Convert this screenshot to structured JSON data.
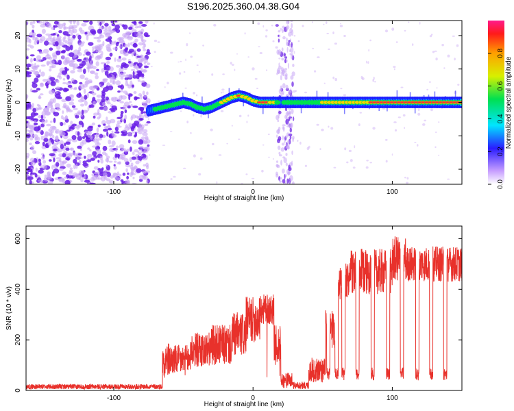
{
  "title": "S196.2025.360.04.38.G04",
  "colors": {
    "snr_line": "#e8312b",
    "ridge_core": "#ff3030",
    "ridge_mid": "#00e050",
    "ridge_edge": "#1e1eff",
    "noise_dark": "#6a1ee6",
    "noise_light": "#c9a8f5"
  },
  "chart_data": [
    {
      "type": "heatmap",
      "name": "spectrogram",
      "xlabel": "Height of straight line (km)",
      "ylabel": "Frequency (Hz)",
      "xlim": [
        -163,
        150
      ],
      "ylim": [
        -24.5,
        24.5
      ],
      "x_ticks": [
        -100,
        0,
        100
      ],
      "x_tick_labels": [
        "-100",
        "0",
        "100"
      ],
      "y_ticks": [
        -20,
        -10,
        0,
        10,
        20
      ],
      "y_tick_labels": [
        "-20",
        "-10",
        "0",
        "10",
        "20"
      ],
      "noise_region_x": [
        -163,
        -75
      ],
      "interference_bands_x": [
        [
          17,
          24
        ],
        [
          24,
          29
        ]
      ],
      "ridge": {
        "x": [
          -75,
          -70,
          -65,
          -60,
          -55,
          -50,
          -45,
          -40,
          -35,
          -30,
          -25,
          -20,
          -15,
          -10,
          -5,
          0,
          5,
          10,
          15,
          20,
          25,
          30,
          40,
          50,
          60,
          70,
          80,
          90,
          100,
          110,
          120,
          130,
          140,
          150
        ],
        "freq_hz": [
          -2.5,
          -2,
          -1.5,
          -1,
          -0.5,
          0,
          -0.5,
          -1.5,
          -2,
          -1.5,
          -0.5,
          0.5,
          1.5,
          2,
          1.5,
          0.5,
          0,
          0,
          0,
          0,
          0,
          0,
          0,
          0,
          0,
          0,
          0,
          0,
          0,
          0,
          0,
          0,
          0,
          0
        ],
        "amplitude": [
          0.2,
          0.4,
          0.5,
          0.4,
          0.55,
          0.5,
          0.45,
          0.5,
          0.55,
          0.5,
          0.55,
          0.65,
          0.75,
          0.8,
          0.7,
          0.65,
          0.8,
          0.85,
          0.7,
          0.2,
          0.55,
          0.5,
          0.5,
          0.6,
          0.65,
          0.65,
          0.75,
          0.85,
          0.8,
          0.95,
          0.95,
          0.95,
          0.9,
          0.9
        ]
      }
    },
    {
      "type": "line",
      "name": "snr",
      "xlabel": "Height of straight line (km)",
      "ylabel": "SNR (10 * v/v)",
      "xlim": [
        -163,
        150
      ],
      "ylim": [
        0,
        650
      ],
      "x_ticks": [
        -100,
        0,
        100
      ],
      "x_tick_labels": [
        "-100",
        "0",
        "100"
      ],
      "y_ticks": [
        0,
        200,
        400,
        600
      ],
      "y_tick_labels": [
        "0",
        "200",
        "400",
        "600"
      ],
      "segments": [
        {
          "x0": -163,
          "x1": -65,
          "base": 15,
          "noise": 10
        },
        {
          "x0": -65,
          "x1": -60,
          "base": 120,
          "noise": 70
        },
        {
          "x0": -60,
          "x1": -45,
          "base": 120,
          "noise": 60
        },
        {
          "x0": -45,
          "x1": -30,
          "base": 160,
          "noise": 70
        },
        {
          "x0": -30,
          "x1": -15,
          "base": 180,
          "noise": 80
        },
        {
          "x0": -15,
          "x1": -5,
          "base": 220,
          "noise": 90
        },
        {
          "x0": -5,
          "x1": 5,
          "base": 280,
          "noise": 90
        },
        {
          "x0": 5,
          "x1": 15,
          "base": 320,
          "noise": 60
        },
        {
          "x0": 15,
          "x1": 20,
          "base": 180,
          "noise": 80
        },
        {
          "x0": 20,
          "x1": 28,
          "base": 40,
          "noise": 30
        },
        {
          "x0": 28,
          "x1": 40,
          "base": 20,
          "noise": 15
        },
        {
          "x0": 40,
          "x1": 52,
          "base": 80,
          "noise": 50
        },
        {
          "x0": 52,
          "x1": 60,
          "base": 250,
          "noise": 90
        },
        {
          "x0": 60,
          "x1": 70,
          "base": 430,
          "noise": 80
        },
        {
          "x0": 70,
          "x1": 100,
          "base": 470,
          "noise": 90
        },
        {
          "x0": 100,
          "x1": 110,
          "base": 520,
          "noise": 90
        },
        {
          "x0": 110,
          "x1": 150,
          "base": 500,
          "noise": 70
        }
      ],
      "dips_x": [
        54,
        60,
        65,
        75,
        86,
        97,
        107,
        118,
        128,
        138
      ]
    }
  ],
  "colorbar": {
    "label": "Normalized spectral amplitude",
    "range": [
      0,
      1
    ],
    "ticks": [
      0.0,
      0.2,
      0.4,
      0.6,
      0.8
    ],
    "tick_labels": [
      "0.0",
      "0.2",
      "0.4",
      "0.6",
      "0.8"
    ]
  }
}
